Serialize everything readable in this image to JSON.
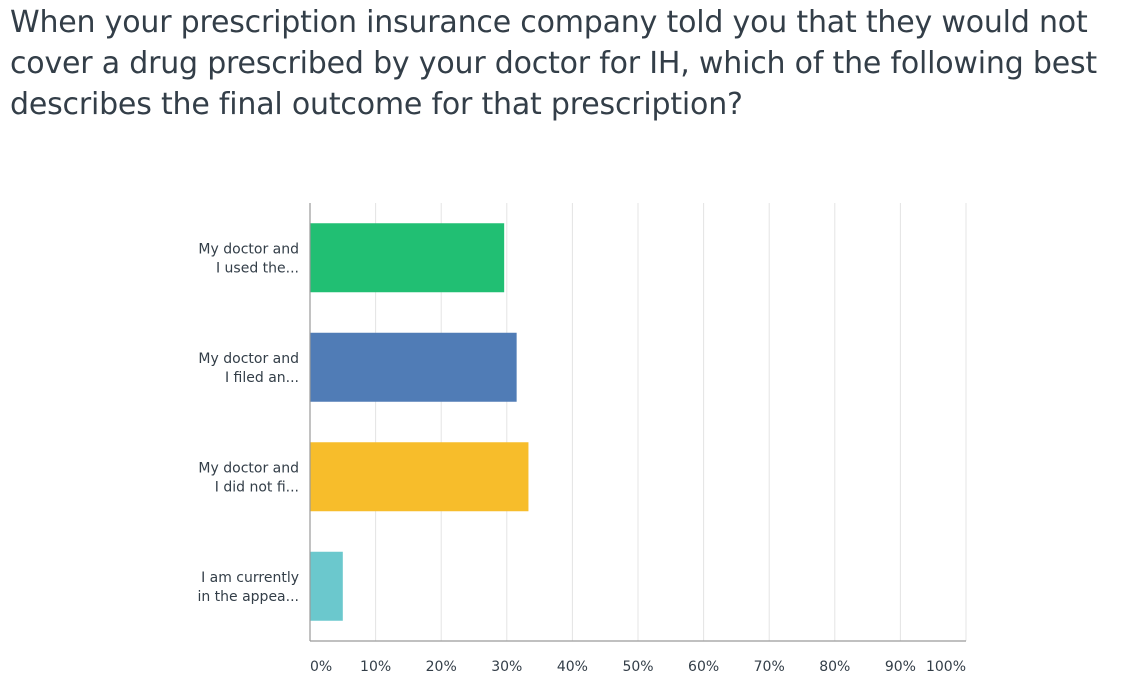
{
  "chart_data": {
    "type": "bar",
    "orientation": "horizontal",
    "title": "When your prescription insurance company told you that they would not cover a drug prescribed by your doctor for IH, which of the following best describes the final outcome for that prescription?",
    "categories": [
      [
        "My doctor and",
        "I used the..."
      ],
      [
        "My doctor and",
        "I filed an..."
      ],
      [
        "My doctor and",
        "I did not fi..."
      ],
      [
        "I am currently",
        "in the appea..."
      ]
    ],
    "values": [
      29.6,
      31.5,
      33.3,
      5.0
    ],
    "unit": "%",
    "xlim": [
      0,
      100
    ],
    "x_ticks": [
      "0%",
      "10%",
      "20%",
      "30%",
      "40%",
      "50%",
      "60%",
      "70%",
      "80%",
      "90%",
      "100%"
    ],
    "grid": true,
    "legend": "none",
    "colors": [
      "#21bf73",
      "#507cb6",
      "#f7bd2b",
      "#6bc8cd"
    ]
  }
}
